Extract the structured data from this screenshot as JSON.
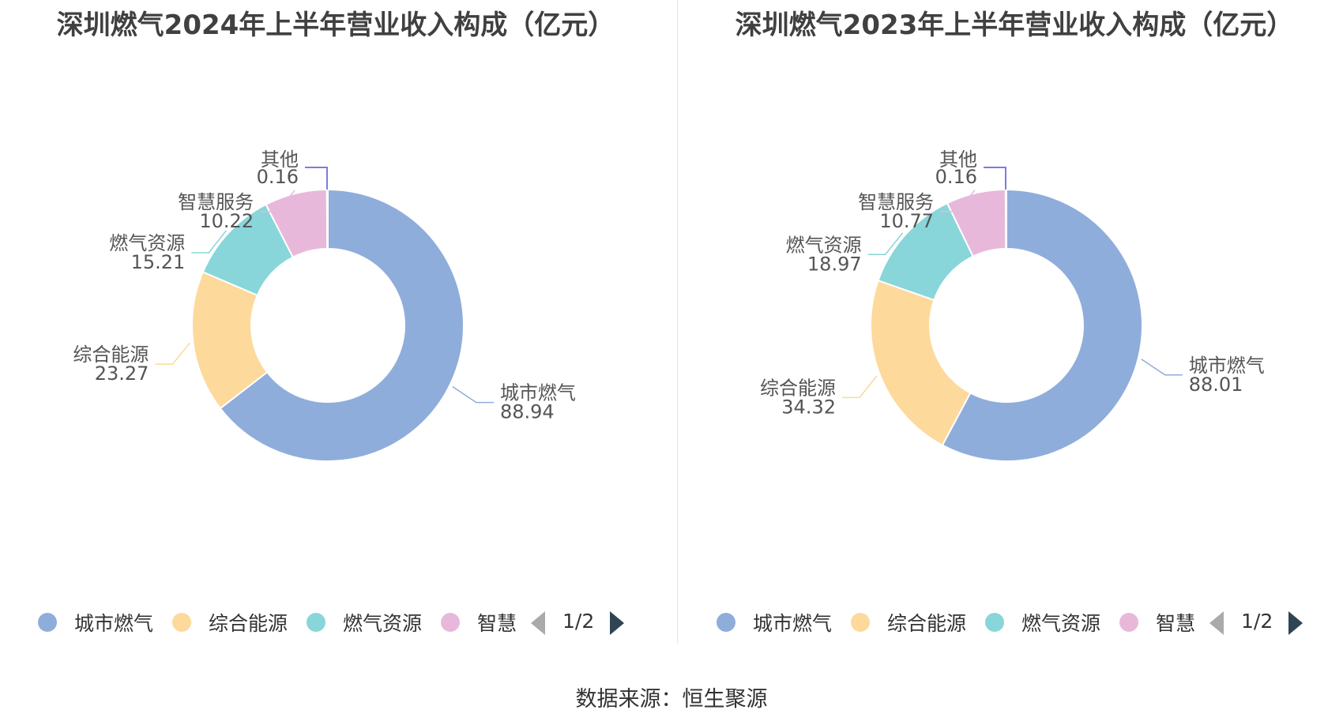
{
  "colors": [
    "#8faddb",
    "#fdd99b",
    "#88d6d9",
    "#e8b8db",
    "#7d7be0"
  ],
  "chart_data": [
    {
      "type": "pie",
      "title": "深圳燃气2024年上半年营业收入构成（亿元）",
      "categories": [
        "城市燃气",
        "综合能源",
        "燃气资源",
        "智慧服务",
        "其他"
      ],
      "values": [
        88.94,
        23.27,
        15.21,
        10.22,
        0.16
      ],
      "value_labels": [
        "88.94",
        "23.27",
        "15.21",
        "10.22",
        "0.16"
      ],
      "legend": {
        "position": "bottom",
        "items": [
          "城市燃气",
          "综合能源",
          "燃气资源",
          "智慧"
        ],
        "page": "1/2"
      }
    },
    {
      "type": "pie",
      "title": "深圳燃气2023年上半年营业收入构成（亿元）",
      "categories": [
        "城市燃气",
        "综合能源",
        "燃气资源",
        "智慧服务",
        "其他"
      ],
      "values": [
        88.01,
        34.32,
        18.97,
        10.77,
        0.16
      ],
      "value_labels": [
        "88.01",
        "34.32",
        "18.97",
        "10.77",
        "0.16"
      ],
      "legend": {
        "position": "bottom",
        "items": [
          "城市燃气",
          "综合能源",
          "燃气资源",
          "智慧"
        ],
        "page": "1/2"
      }
    }
  ],
  "source": "数据来源：恒生聚源"
}
